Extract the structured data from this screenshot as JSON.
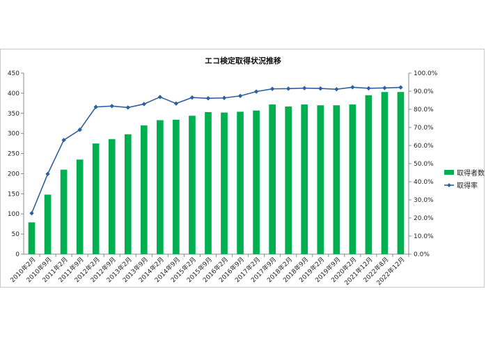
{
  "chart_data": {
    "type": "bar+line",
    "title": "エコ検定取得状況推移",
    "categories": [
      "2010年2月",
      "2010年9月",
      "2011年2月",
      "2011年9月",
      "2012年2月",
      "2012年9月",
      "2013年2月",
      "2013年9月",
      "2014年2月",
      "2014年9月",
      "2015年2月",
      "2015年9月",
      "2016年2月",
      "2016年9月",
      "2017年2月",
      "2017年9月",
      "2018年2月",
      "2018年9月",
      "2019年2月",
      "2019年9月",
      "2020年2月",
      "2021年12月",
      "2022年8月",
      "2022年12月"
    ],
    "series": [
      {
        "name": "取得者数",
        "type": "bar",
        "axis": "left",
        "color": "#00b050",
        "values": [
          79,
          148,
          210,
          235,
          275,
          286,
          298,
          320,
          333,
          334,
          344,
          353,
          352,
          354,
          357,
          372,
          367,
          372,
          370,
          370,
          372,
          395,
          403,
          403
        ]
      },
      {
        "name": "取得率",
        "type": "line",
        "axis": "right",
        "color": "#2e5f9e",
        "values": [
          22.6,
          44.3,
          63.0,
          68.7,
          81.3,
          81.8,
          81.0,
          82.9,
          86.8,
          83.2,
          86.5,
          86.1,
          86.3,
          87.4,
          89.8,
          91.3,
          91.4,
          91.7,
          91.5,
          91.1,
          92.2,
          91.6,
          91.8,
          92.1
        ]
      }
    ],
    "y_left": {
      "min": 0,
      "max": 450,
      "ticks": [
        "0",
        "50",
        "100",
        "150",
        "200",
        "250",
        "300",
        "350",
        "400",
        "450"
      ]
    },
    "y_right": {
      "min": 0,
      "max": 100,
      "ticks": [
        "0.0%",
        "10.0%",
        "20.0%",
        "30.0%",
        "40.0%",
        "50.0%",
        "60.0%",
        "70.0%",
        "80.0%",
        "90.0%",
        "100.0%"
      ]
    },
    "legend_position": "right",
    "grid": false
  }
}
